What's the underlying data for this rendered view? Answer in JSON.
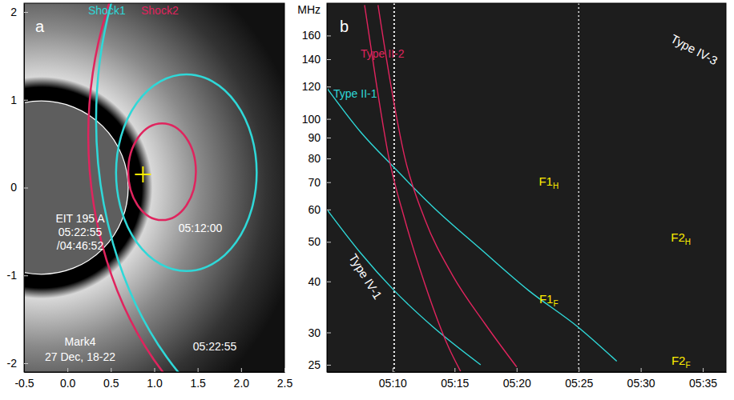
{
  "chart_data": [
    {
      "type": "ellipse",
      "panel_label": "a",
      "xlim": [
        -0.5,
        2.5
      ],
      "ylim": [
        -2.1,
        2.1
      ],
      "xticks": [
        -0.5,
        {
          "value": 0,
          "label": "0.0"
        },
        0.5,
        {
          "value": 1,
          "label": "1.0"
        },
        1.5,
        {
          "value": 2,
          "label": "2.0"
        },
        2.5
      ],
      "yticks": [
        -2,
        -1,
        0,
        1,
        2
      ],
      "disk": {
        "cx": -0.3,
        "cy": 0,
        "r": 1.0,
        "labels": [
          "EIT 195 A",
          "05:22:55",
          "/04:46:52"
        ]
      },
      "instrument_labels": [
        "Mark4",
        "27 Dec, 18-22"
      ],
      "series": [
        {
          "name": "Shock1",
          "color": "#2fd8d8",
          "ellipses": [
            {
              "cx": 1.37,
              "cy": 0.17,
              "rx": 0.81,
              "ry": 1.12,
              "label": "05:12:00"
            },
            {
              "cx": 3.11,
              "cy": 0.77,
              "rx": 2.78,
              "ry": 3.82,
              "label": "05:22:55"
            }
          ]
        },
        {
          "name": "Shock2",
          "color": "#e0245e",
          "ellipses": [
            {
              "cx": 1.09,
              "cy": 0.18,
              "rx": 0.39,
              "ry": 0.55
            },
            {
              "cx": 3.2,
              "cy": 0.59,
              "rx": 2.96,
              "ry": 3.82
            }
          ]
        }
      ],
      "points": {
        "x": [
          0.87
        ],
        "values": [
          0.15
        ],
        "color": "#ffee00",
        "marker": "cross"
      }
    },
    {
      "type": "line",
      "panel_label": "b",
      "log": "y",
      "ylabel": "MHz",
      "xlim": [
        "05:04:43",
        "05:36:52"
      ],
      "ylim": [
        24,
        192
      ],
      "xticks": [
        "05:10",
        "05:15",
        "05:20",
        "05:25",
        "05:30",
        "05:35"
      ],
      "yticks": [
        25,
        30,
        40,
        50,
        60,
        70,
        80,
        90,
        100,
        120,
        140,
        160
      ],
      "vlines": {
        "x": [
          "05:10:08",
          "05:25:00"
        ],
        "color": "#ffffff",
        "line_style": "dotted"
      },
      "series": [
        {
          "name": "Type II-1",
          "color": "#2fd8d8",
          "lanes": [
            {
              "x": [
                "05:04:43",
                "05:07:25",
                "05:10:08",
                "05:13:14",
                "05:17:06",
                "05:20:58",
                "05:24:54",
                "05:28:04"
              ],
              "values": [
                119,
                93,
                76,
                61,
                48,
                38,
                31,
                25.5
              ]
            },
            {
              "x": [
                "05:04:43",
                "05:07:25",
                "05:10:08",
                "05:13:14",
                "05:17:06"
              ],
              "values": [
                60,
                47,
                38,
                31,
                25
              ]
            }
          ]
        },
        {
          "name": "Type II-2",
          "color": "#e0245e",
          "lanes": [
            {
              "x": [
                "05:07:45",
                "05:08:43",
                "05:09:41",
                "05:10:58",
                "05:12:35",
                "05:14:31",
                "05:15:29"
              ],
              "values": [
                190,
                121,
                81,
                57,
                39.6,
                27.6,
                24.1
              ]
            },
            {
              "x": [
                "05:08:50",
                "05:09:52",
                "05:10:58",
                "05:12:35",
                "05:14:50",
                "05:17:25",
                "05:20:00"
              ],
              "values": [
                190,
                121,
                81,
                57,
                41.4,
                31.6,
                24.7
              ]
            }
          ]
        }
      ],
      "annotations": [
        {
          "text": "Type IV-1",
          "color": "#ffffff",
          "x": "05:07:45",
          "y": 41
        },
        {
          "text": "Type IV-3",
          "color": "#ffffff",
          "x": "05:34:16",
          "y": 147
        },
        {
          "text": "F1",
          "sub": "H",
          "color": "#ffee00",
          "x": "05:22:35",
          "y": 70
        },
        {
          "text": "F1",
          "sub": "F",
          "color": "#ffee00",
          "x": "05:22:35",
          "y": 36
        },
        {
          "text": "F2",
          "sub": "H",
          "color": "#ffee00",
          "x": "05:33:14",
          "y": 51
        },
        {
          "text": "F2",
          "sub": "F",
          "color": "#ffee00",
          "x": "05:33:14",
          "y": 25.5
        }
      ]
    }
  ]
}
